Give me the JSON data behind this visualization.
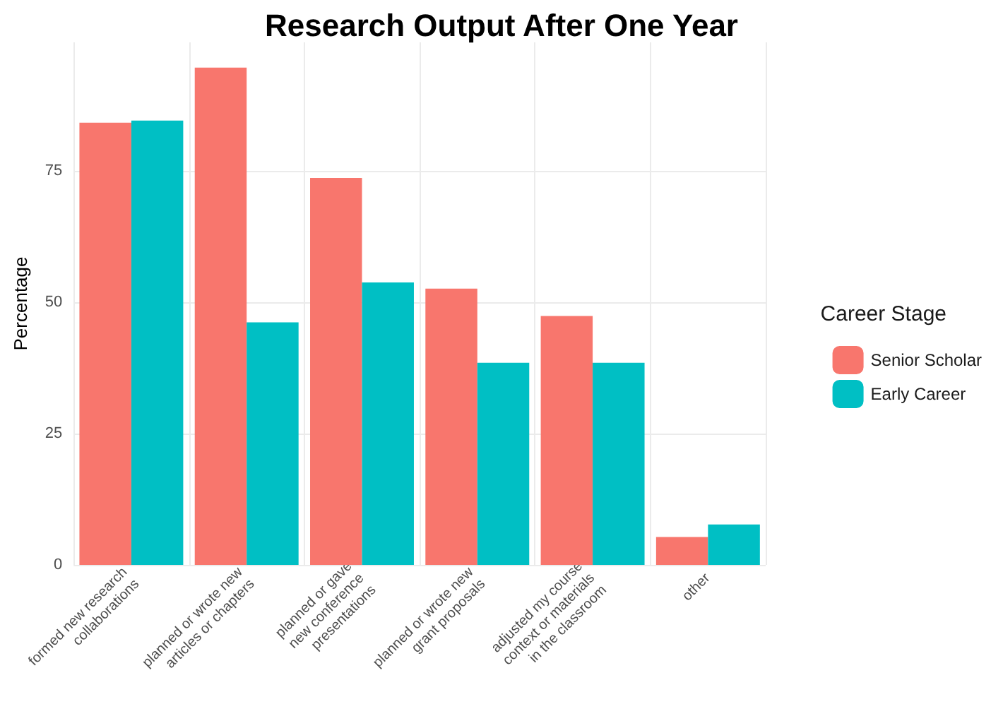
{
  "chart_data": {
    "type": "bar",
    "title": "Research Output After One Year",
    "ylabel": "Percentage",
    "legend_title": "Career Stage",
    "categories": [
      "formed new research\ncollaborations",
      "planned or wrote new\narticles or chapters",
      "planned or gave\nnew conference\npresentations",
      "planned or wrote new\ngrant proposals",
      "adjusted my course\ncontext or materials\nin the classroom",
      "other"
    ],
    "series": [
      {
        "name": "Senior Scholar",
        "color": "#f8766d",
        "values": [
          84.2,
          94.7,
          73.7,
          52.6,
          47.4,
          5.3
        ]
      },
      {
        "name": "Early Career",
        "color": "#00bfc4",
        "values": [
          84.6,
          46.2,
          53.8,
          38.5,
          38.5,
          7.7
        ]
      }
    ],
    "ylim": [
      0,
      99.5
    ],
    "yticks": [
      0,
      25,
      50,
      75
    ],
    "grid": true,
    "legend": "right"
  }
}
